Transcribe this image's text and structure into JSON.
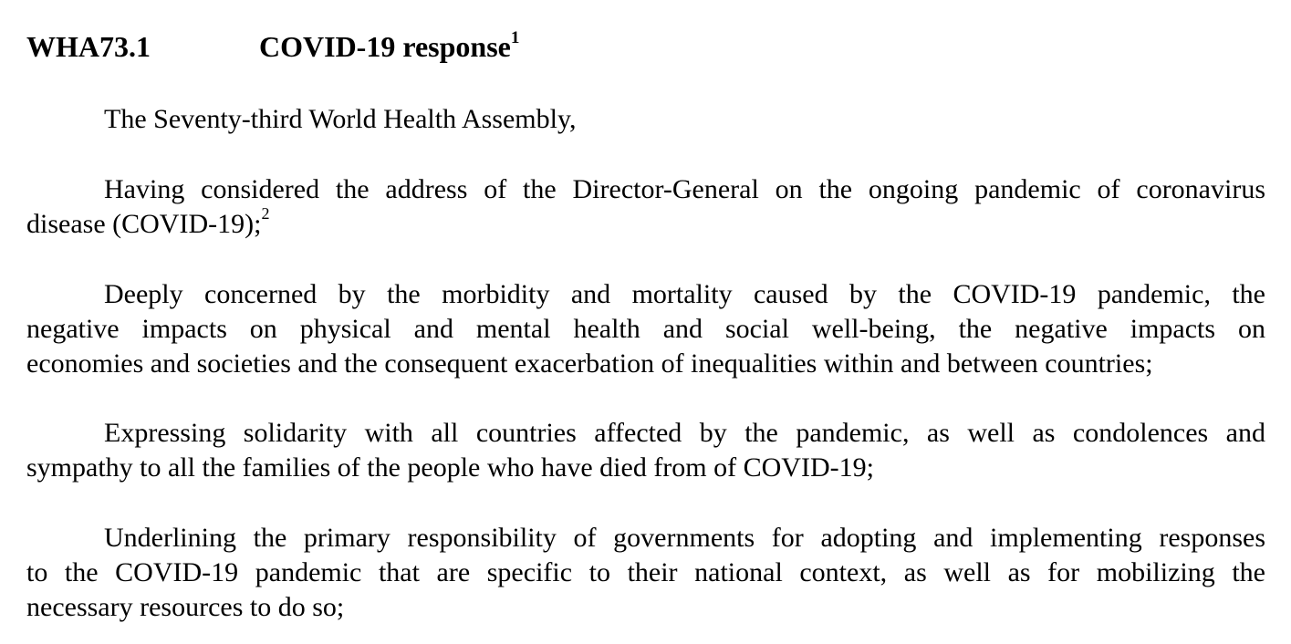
{
  "heading": {
    "code": "WHA73.1",
    "title": "COVID-19 response",
    "title_footnote": "1"
  },
  "paragraphs": [
    {
      "lines": [
        "The Seventy-third World Health Assembly,"
      ]
    },
    {
      "lines": [
        "Having considered the address of the Director-General on the ongoing pandemic of coronavirus",
        "disease (COVID-19);"
      ],
      "footnote": "2"
    },
    {
      "lines": [
        "Deeply concerned by the morbidity and mortality caused by the COVID-19 pandemic, the",
        "negative impacts on physical and mental health and social well-being, the negative impacts on",
        "economies and societies and the consequent exacerbation of inequalities within and between countries;"
      ]
    },
    {
      "lines": [
        "Expressing solidarity with all countries affected by the pandemic, as well as condolences and",
        "sympathy to all the families of the people who have died from of COVID-19;"
      ]
    },
    {
      "lines": [
        "Underlining the primary responsibility of governments for adopting and implementing responses",
        "to the COVID-19 pandemic that are specific to their national context, as well as for mobilizing the",
        "necessary resources to do so;"
      ]
    }
  ]
}
